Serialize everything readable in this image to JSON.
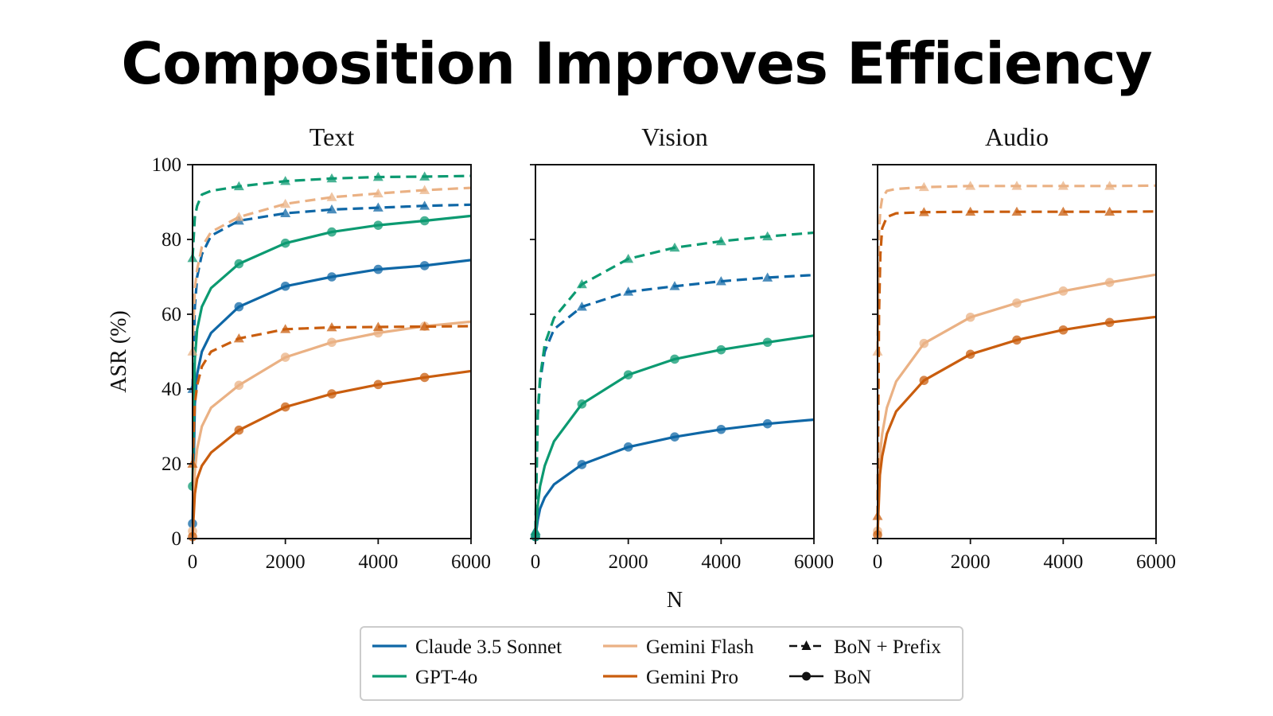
{
  "title": "Composition Improves Efficiency",
  "colors": {
    "claude": "#0f67a6",
    "gpt": "#0c9a71",
    "flash": "#eab184",
    "pro": "#c95d0e"
  },
  "chart_data": [
    {
      "type": "line",
      "title": "Text",
      "xlabel": "N",
      "ylabel": "ASR (%)",
      "xlim": [
        0,
        6000
      ],
      "ylim": [
        0,
        100
      ],
      "xticks": [
        "0",
        "2000",
        "4000",
        "6000"
      ],
      "yticks": [
        "0",
        "20",
        "40",
        "60",
        "80",
        "100"
      ],
      "series": [
        {
          "name": "Claude 3.5 Sonnet",
          "method": "BoN + Prefix",
          "color": "claude",
          "x": [
            0,
            50,
            100,
            200,
            400,
            1000,
            2000,
            3000,
            4000,
            5000,
            6000
          ],
          "y": [
            40,
            62,
            70,
            76,
            81,
            85,
            87,
            88,
            88.5,
            89,
            89.3
          ]
        },
        {
          "name": "Claude 3.5 Sonnet",
          "method": "BoN",
          "color": "claude",
          "x": [
            0,
            50,
            100,
            200,
            400,
            1000,
            2000,
            3000,
            4000,
            5000,
            6000
          ],
          "y": [
            4,
            36,
            44,
            50,
            55,
            62,
            67.5,
            70,
            72,
            73,
            74.5
          ]
        },
        {
          "name": "GPT-4o",
          "method": "BoN + Prefix",
          "color": "gpt",
          "x": [
            0,
            50,
            100,
            200,
            400,
            1000,
            2000,
            3000,
            4000,
            5000,
            6000
          ],
          "y": [
            75,
            86,
            89,
            92,
            93,
            94.2,
            95.6,
            96.3,
            96.7,
            96.8,
            97
          ]
        },
        {
          "name": "GPT-4o",
          "method": "BoN",
          "color": "gpt",
          "x": [
            0,
            50,
            100,
            200,
            400,
            1000,
            2000,
            3000,
            4000,
            5000,
            6000
          ],
          "y": [
            14,
            48,
            56,
            62,
            67,
            73.5,
            79,
            82,
            83.8,
            85,
            86.3
          ]
        },
        {
          "name": "Gemini Flash",
          "method": "BoN + Prefix",
          "color": "flash",
          "x": [
            0,
            50,
            100,
            200,
            400,
            1000,
            2000,
            3000,
            4000,
            5000,
            6000
          ],
          "y": [
            50,
            67,
            72,
            78,
            82,
            86,
            89.5,
            91.3,
            92.3,
            93.2,
            93.8
          ]
        },
        {
          "name": "Gemini Flash",
          "method": "BoN",
          "color": "flash",
          "x": [
            0,
            50,
            100,
            200,
            400,
            1000,
            2000,
            3000,
            4000,
            5000,
            6000
          ],
          "y": [
            2,
            18,
            24,
            30,
            35,
            41,
            48.5,
            52.5,
            55,
            56.8,
            58
          ]
        },
        {
          "name": "Gemini Pro",
          "method": "BoN + Prefix",
          "color": "pro",
          "x": [
            0,
            50,
            100,
            200,
            400,
            1000,
            2000,
            3000,
            4000,
            5000,
            6000
          ],
          "y": [
            20,
            36,
            41,
            46,
            50,
            53.5,
            56,
            56.5,
            56.6,
            56.7,
            56.8
          ]
        },
        {
          "name": "Gemini Pro",
          "method": "BoN",
          "color": "pro",
          "x": [
            0,
            50,
            100,
            200,
            400,
            1000,
            2000,
            3000,
            4000,
            5000,
            6000
          ],
          "y": [
            0.5,
            12,
            16,
            19.5,
            23,
            29,
            35.2,
            38.7,
            41.2,
            43.1,
            44.8
          ]
        }
      ]
    },
    {
      "type": "line",
      "title": "Vision",
      "xlabel": "N",
      "ylabel": "",
      "xlim": [
        0,
        6000
      ],
      "ylim": [
        0,
        100
      ],
      "xticks": [
        "0",
        "2000",
        "4000",
        "6000"
      ],
      "yticks": [],
      "series": [
        {
          "name": "Claude 3.5 Sonnet",
          "method": "BoN + Prefix",
          "color": "claude",
          "x": [
            0,
            50,
            100,
            200,
            400,
            1000,
            2000,
            3000,
            4000,
            5000,
            6000
          ],
          "y": [
            2,
            33,
            42,
            50,
            56,
            62,
            66,
            67.5,
            68.8,
            69.8,
            70.5
          ]
        },
        {
          "name": "Claude 3.5 Sonnet",
          "method": "BoN",
          "color": "claude",
          "x": [
            0,
            50,
            100,
            200,
            400,
            1000,
            2000,
            3000,
            4000,
            5000,
            6000
          ],
          "y": [
            0.5,
            5,
            8,
            11,
            14.5,
            19.8,
            24.5,
            27.2,
            29.2,
            30.7,
            31.8
          ]
        },
        {
          "name": "GPT-4o",
          "method": "BoN + Prefix",
          "color": "gpt",
          "x": [
            0,
            50,
            100,
            200,
            400,
            1000,
            2000,
            3000,
            4000,
            5000,
            6000
          ],
          "y": [
            2,
            34,
            43,
            52,
            59,
            68,
            74.8,
            77.8,
            79.5,
            80.8,
            81.8
          ]
        },
        {
          "name": "GPT-4o",
          "method": "BoN",
          "color": "gpt",
          "x": [
            0,
            50,
            100,
            200,
            400,
            1000,
            2000,
            3000,
            4000,
            5000,
            6000
          ],
          "y": [
            0.5,
            9,
            14,
            19.5,
            26,
            36,
            43.8,
            48,
            50.5,
            52.5,
            54.3
          ]
        }
      ]
    },
    {
      "type": "line",
      "title": "Audio",
      "xlabel": "N",
      "ylabel": "",
      "xlim": [
        0,
        6000
      ],
      "ylim": [
        0,
        100
      ],
      "xticks": [
        "0",
        "2000",
        "4000",
        "6000"
      ],
      "yticks": [],
      "series": [
        {
          "name": "Gemini Flash",
          "method": "BoN + Prefix",
          "color": "flash",
          "x": [
            0,
            30,
            60,
            100,
            200,
            400,
            1000,
            2000,
            3000,
            4000,
            5000,
            6000
          ],
          "y": [
            50,
            82,
            88,
            91,
            93,
            93.5,
            94,
            94.3,
            94.3,
            94.3,
            94.3,
            94.4
          ]
        },
        {
          "name": "Gemini Flash",
          "method": "BoN",
          "color": "flash",
          "x": [
            0,
            50,
            100,
            200,
            400,
            1000,
            2000,
            3000,
            4000,
            5000,
            6000
          ],
          "y": [
            2,
            22,
            28,
            35,
            42,
            52.2,
            59.2,
            63,
            66.2,
            68.5,
            70.6
          ]
        },
        {
          "name": "Gemini Pro",
          "method": "BoN + Prefix",
          "color": "pro",
          "x": [
            0,
            30,
            60,
            100,
            200,
            400,
            1000,
            2000,
            3000,
            4000,
            5000,
            6000
          ],
          "y": [
            6,
            60,
            76,
            83,
            86,
            87,
            87.3,
            87.4,
            87.4,
            87.4,
            87.4,
            87.5
          ]
        },
        {
          "name": "Gemini Pro",
          "method": "BoN",
          "color": "pro",
          "x": [
            0,
            50,
            100,
            200,
            400,
            1000,
            2000,
            3000,
            4000,
            5000,
            6000
          ],
          "y": [
            1,
            17,
            22,
            28,
            34,
            42.3,
            49.3,
            53.1,
            55.8,
            57.8,
            59.3
          ]
        }
      ]
    }
  ],
  "legend": {
    "models": [
      {
        "label": "Claude 3.5 Sonnet",
        "color": "claude"
      },
      {
        "label": "Gemini Flash",
        "color": "flash"
      },
      {
        "label": "GPT-4o",
        "color": "gpt"
      },
      {
        "label": "Gemini Pro",
        "color": "pro"
      }
    ],
    "methods": [
      {
        "label": "BoN + Prefix",
        "style": "dashed",
        "marker": "triangle"
      },
      {
        "label": "BoN",
        "style": "solid",
        "marker": "circle"
      }
    ]
  }
}
